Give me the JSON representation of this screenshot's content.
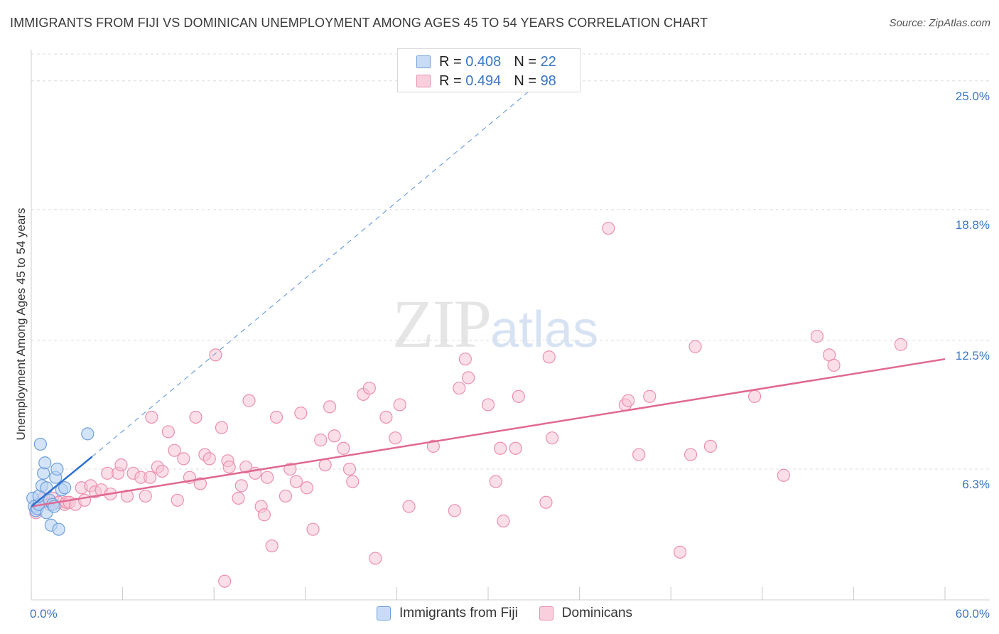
{
  "title": "IMMIGRANTS FROM FIJI VS DOMINICAN UNEMPLOYMENT AMONG AGES 45 TO 54 YEARS CORRELATION CHART",
  "source": "Source: ZipAtlas.com",
  "watermark": {
    "zip": "ZIP",
    "atlas": "atlas"
  },
  "legend": {
    "fiji": {
      "r_label": "R =",
      "r_value": "0.408",
      "n_label": "N =",
      "n_value": "22"
    },
    "dominicans": {
      "r_label": "R =",
      "r_value": "0.494",
      "n_label": "N =",
      "n_value": "98"
    }
  },
  "colors": {
    "fiji_fill": "#b8d2f3",
    "fiji_stroke": "#6f9fdc",
    "fiji_line": "#2e6fd0",
    "dominicans_fill": "#f7c5d5",
    "dominicans_stroke": "#ec8fac",
    "dominicans_line": "#e06991",
    "tick_label": "#3a76c4",
    "grid": "#dcdcdc"
  },
  "chart_data": {
    "type": "scatter",
    "xlabel": "",
    "ylabel": "Unemployment Among Ages 45 to 54 years",
    "xlim": [
      0,
      60
    ],
    "ylim": [
      0,
      26.5
    ],
    "x_tick_labels": [
      {
        "value": 0,
        "label": "0.0%"
      },
      {
        "value": 60,
        "label": "60.0%"
      }
    ],
    "y_ticks": [
      {
        "value": 6.3,
        "label": "6.3%"
      },
      {
        "value": 12.5,
        "label": "12.5%"
      },
      {
        "value": 18.8,
        "label": "18.8%"
      },
      {
        "value": 25.0,
        "label": "25.0%"
      }
    ],
    "grid": "horizontal dashed",
    "legend_placement": "top-center",
    "series": [
      {
        "name": "Immigrants from Fiji",
        "points": [
          [
            0.1,
            4.9
          ],
          [
            0.2,
            4.5
          ],
          [
            0.3,
            4.3
          ],
          [
            0.4,
            4.4
          ],
          [
            0.5,
            4.6
          ],
          [
            0.5,
            5.0
          ],
          [
            0.6,
            7.5
          ],
          [
            0.7,
            5.5
          ],
          [
            0.8,
            6.1
          ],
          [
            0.9,
            6.6
          ],
          [
            1.0,
            5.4
          ],
          [
            1.0,
            4.2
          ],
          [
            1.2,
            4.8
          ],
          [
            1.3,
            3.6
          ],
          [
            1.4,
            4.6
          ],
          [
            1.5,
            4.5
          ],
          [
            1.6,
            5.9
          ],
          [
            1.7,
            6.3
          ],
          [
            1.8,
            3.4
          ],
          [
            2.0,
            5.3
          ],
          [
            2.2,
            5.4
          ],
          [
            3.7,
            8.0
          ]
        ],
        "trend": {
          "x0": 0,
          "y0": 4.5,
          "x1": 4.0,
          "y1": 6.9
        },
        "trend_extended": {
          "x0": 4.0,
          "y0": 6.9,
          "x1": 33.5,
          "y1": 25.0
        }
      },
      {
        "name": "Dominicans",
        "points": [
          [
            0.3,
            4.2
          ],
          [
            0.5,
            4.6
          ],
          [
            0.8,
            4.9
          ],
          [
            1.2,
            4.6
          ],
          [
            1.4,
            4.9
          ],
          [
            1.8,
            4.7
          ],
          [
            2.2,
            4.6
          ],
          [
            2.3,
            4.7
          ],
          [
            2.5,
            4.7
          ],
          [
            2.9,
            4.6
          ],
          [
            3.3,
            5.4
          ],
          [
            3.5,
            4.8
          ],
          [
            3.9,
            5.5
          ],
          [
            4.2,
            5.2
          ],
          [
            4.6,
            5.3
          ],
          [
            5.0,
            6.1
          ],
          [
            5.2,
            5.1
          ],
          [
            5.7,
            6.1
          ],
          [
            5.9,
            6.5
          ],
          [
            6.3,
            5.0
          ],
          [
            6.7,
            6.1
          ],
          [
            7.2,
            5.9
          ],
          [
            7.5,
            5.0
          ],
          [
            7.8,
            5.9
          ],
          [
            7.9,
            8.8
          ],
          [
            8.3,
            6.4
          ],
          [
            8.6,
            6.2
          ],
          [
            9.0,
            8.1
          ],
          [
            9.4,
            7.2
          ],
          [
            9.6,
            4.8
          ],
          [
            10.0,
            6.8
          ],
          [
            10.4,
            5.9
          ],
          [
            10.8,
            8.8
          ],
          [
            11.1,
            5.6
          ],
          [
            11.4,
            7.0
          ],
          [
            11.7,
            6.8
          ],
          [
            12.1,
            11.8
          ],
          [
            12.5,
            8.3
          ],
          [
            12.7,
            0.9
          ],
          [
            12.9,
            6.7
          ],
          [
            13.0,
            6.4
          ],
          [
            13.6,
            4.9
          ],
          [
            13.8,
            5.5
          ],
          [
            14.1,
            6.4
          ],
          [
            14.3,
            9.6
          ],
          [
            14.7,
            6.1
          ],
          [
            15.1,
            4.5
          ],
          [
            15.3,
            4.1
          ],
          [
            15.5,
            5.9
          ],
          [
            15.8,
            2.6
          ],
          [
            16.1,
            8.8
          ],
          [
            16.7,
            5.0
          ],
          [
            17.0,
            6.3
          ],
          [
            17.4,
            5.7
          ],
          [
            17.7,
            9.0
          ],
          [
            18.1,
            5.4
          ],
          [
            18.5,
            3.4
          ],
          [
            19.0,
            7.7
          ],
          [
            19.3,
            6.5
          ],
          [
            19.6,
            9.3
          ],
          [
            19.9,
            7.9
          ],
          [
            20.5,
            7.3
          ],
          [
            20.9,
            6.3
          ],
          [
            21.1,
            5.7
          ],
          [
            21.8,
            9.9
          ],
          [
            22.2,
            10.2
          ],
          [
            22.6,
            2.0
          ],
          [
            23.3,
            8.8
          ],
          [
            23.9,
            7.8
          ],
          [
            24.2,
            9.4
          ],
          [
            24.8,
            4.5
          ],
          [
            26.4,
            7.4
          ],
          [
            27.8,
            4.3
          ],
          [
            28.1,
            10.2
          ],
          [
            28.5,
            11.6
          ],
          [
            28.7,
            10.7
          ],
          [
            30.0,
            9.4
          ],
          [
            30.5,
            5.7
          ],
          [
            30.8,
            7.3
          ],
          [
            31.0,
            3.8
          ],
          [
            31.8,
            7.3
          ],
          [
            32.0,
            9.8
          ],
          [
            33.8,
            4.7
          ],
          [
            34.0,
            11.7
          ],
          [
            34.2,
            7.8
          ],
          [
            37.9,
            17.9
          ],
          [
            39.0,
            9.4
          ],
          [
            39.2,
            9.6
          ],
          [
            39.9,
            7.0
          ],
          [
            40.6,
            9.8
          ],
          [
            42.6,
            2.3
          ],
          [
            43.3,
            7.0
          ],
          [
            43.6,
            12.2
          ],
          [
            44.6,
            7.4
          ],
          [
            47.5,
            9.8
          ],
          [
            49.4,
            6.0
          ],
          [
            51.6,
            12.7
          ],
          [
            52.4,
            11.8
          ],
          [
            52.7,
            11.3
          ],
          [
            57.1,
            12.3
          ]
        ],
        "trend": {
          "x0": 0,
          "y0": 4.5,
          "x1": 60,
          "y1": 11.6
        }
      }
    ]
  },
  "bottom_legend": {
    "fiji": "Immigrants from Fiji",
    "dominicans": "Dominicans"
  }
}
